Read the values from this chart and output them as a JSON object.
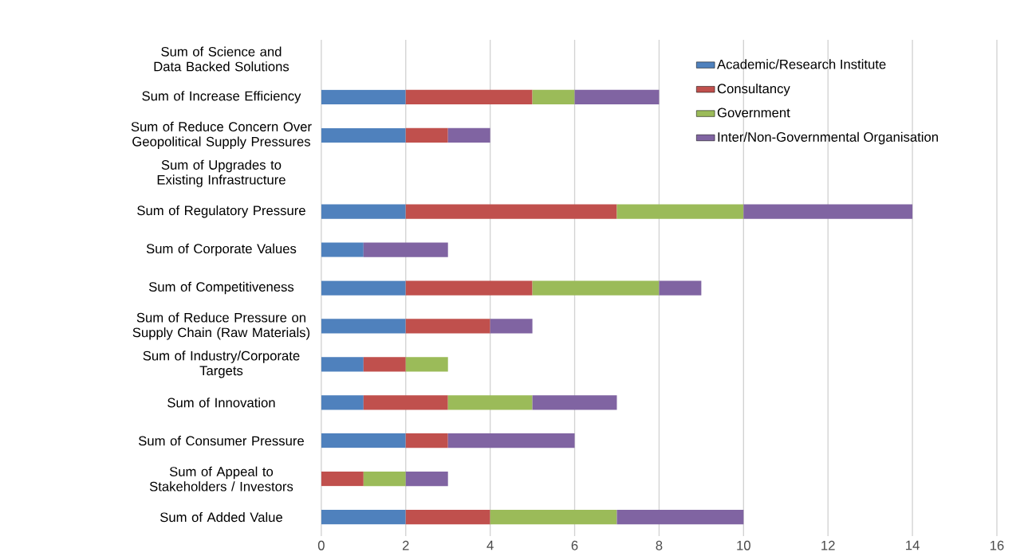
{
  "chart_data": {
    "type": "bar",
    "orientation": "horizontal",
    "stacked": true,
    "categories": [
      "Sum of Science and Data Backed Solutions",
      "Sum of Increase Efficiency",
      "Sum of Reduce Concern Over Geopolitical Supply Pressures",
      "Sum of Upgrades to Existing Infrastructure",
      "Sum of Regulatory Pressure",
      "Sum of Corporate Values",
      "Sum of Competitiveness",
      "Sum of Reduce Pressure on Supply Chain (Raw Materials)",
      "Sum of Industry/Corporate Targets",
      "Sum of Innovation",
      "Sum of Consumer Pressure",
      "Sum of Appeal to Stakeholders / Investors",
      "Sum of Added Value"
    ],
    "series": [
      {
        "name": "Academic/Research Institute",
        "color": "#4f81bd",
        "values": [
          null,
          2,
          2,
          null,
          2,
          1,
          2,
          2,
          1,
          1,
          2,
          null,
          2
        ]
      },
      {
        "name": "Consultancy",
        "color": "#c0504d",
        "values": [
          null,
          3,
          1,
          null,
          5,
          null,
          3,
          2,
          1,
          2,
          1,
          1,
          2
        ]
      },
      {
        "name": "Government",
        "color": "#9bbb59",
        "values": [
          null,
          1,
          null,
          null,
          3,
          null,
          3,
          null,
          1,
          2,
          null,
          1,
          3
        ]
      },
      {
        "name": "Inter/Non-Governmental Organisation",
        "color": "#8064a2",
        "values": [
          null,
          2,
          1,
          null,
          4,
          2,
          1,
          1,
          null,
          2,
          3,
          1,
          3
        ]
      }
    ],
    "xlim": [
      0,
      16
    ],
    "xticks": [
      0,
      2,
      4,
      6,
      8,
      10,
      12,
      14,
      16
    ],
    "grid": "x",
    "legend": "top right"
  }
}
